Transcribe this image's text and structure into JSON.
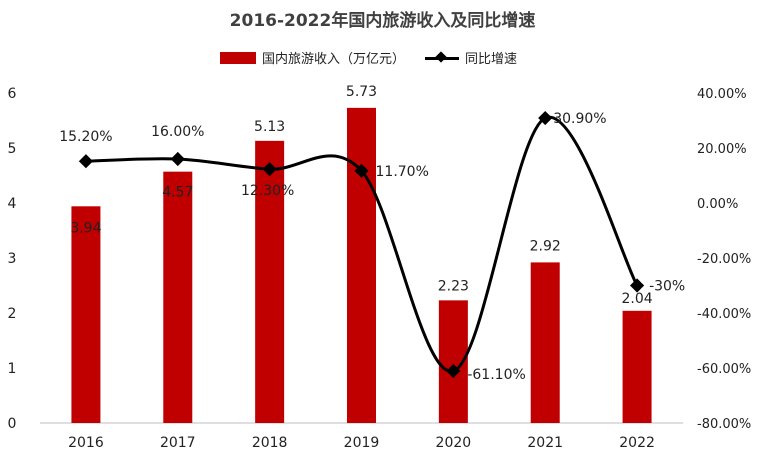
{
  "chart_data": {
    "type": "bar",
    "title": "2016-2022年国内旅游收入及同比增速",
    "categories": [
      "2016",
      "2017",
      "2018",
      "2019",
      "2020",
      "2021",
      "2022"
    ],
    "series": [
      {
        "name": "国内旅游收入（万亿元）",
        "type": "bar",
        "axis": "left",
        "values": [
          3.94,
          4.57,
          5.13,
          5.73,
          2.23,
          2.92,
          2.04
        ],
        "labels": [
          "3.94",
          "4.57",
          "5.13",
          "5.73",
          "2.23",
          "2.92",
          "2.04"
        ],
        "color": "#c00000"
      },
      {
        "name": "同比增速",
        "type": "line",
        "axis": "right",
        "values": [
          15.2,
          16.0,
          12.3,
          11.7,
          -61.1,
          30.9,
          -30.0
        ],
        "labels": [
          "15.20%",
          "16.00%",
          "12.30%",
          "11.70%",
          "-61.10%",
          "30.90%",
          "-30%"
        ],
        "color": "#000000"
      }
    ],
    "y_left": {
      "ylim": [
        0,
        6
      ],
      "ticks": [
        "0",
        "1",
        "2",
        "3",
        "4",
        "5",
        "6"
      ]
    },
    "y_right": {
      "ylim": [
        -80,
        40
      ],
      "ticks": [
        "-80.00%",
        "-60.00%",
        "-40.00%",
        "-20.00%",
        "0.00%",
        "20.00%",
        "40.00%"
      ]
    },
    "legend": "top",
    "grid": false
  }
}
